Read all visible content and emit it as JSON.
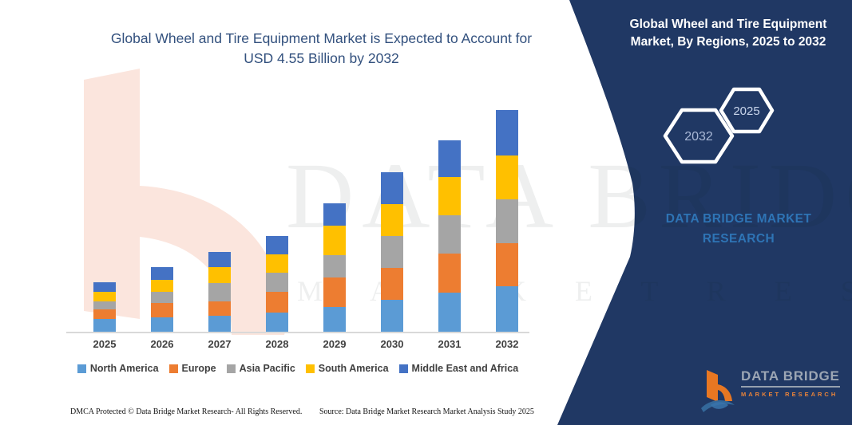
{
  "page": {
    "background": "#FFFFFF"
  },
  "chart": {
    "title": "Global Wheel and Tire Equipment Market is Expected to Account for USD 4.55 Billion by 2032",
    "title_line1": "Global Wheel and Tire Equipment Market is Expected to Account for",
    "title_line2": "USD 4.55 Billion by 2032",
    "title_color": "#33517E",
    "axis_color": "#D9D9D9"
  },
  "chart_data": {
    "type": "bar",
    "stacked": true,
    "title": "Global Wheel and Tire Equipment Market is Expected to Account for USD 4.55 Billion by 2032",
    "unit": "USD Billion",
    "categories": [
      "2025",
      "2026",
      "2027",
      "2028",
      "2029",
      "2030",
      "2031",
      "2032"
    ],
    "series": [
      {
        "name": "North America",
        "color": "#5B9BD5",
        "values": [
          0.27,
          0.3,
          0.33,
          0.4,
          0.51,
          0.66,
          0.8,
          0.93
        ]
      },
      {
        "name": "Europe",
        "color": "#ED7D31",
        "values": [
          0.19,
          0.29,
          0.3,
          0.42,
          0.6,
          0.66,
          0.8,
          0.88
        ]
      },
      {
        "name": "Asia Pacific",
        "color": "#A5A5A5",
        "values": [
          0.16,
          0.23,
          0.38,
          0.4,
          0.46,
          0.65,
          0.78,
          0.9
        ]
      },
      {
        "name": "South America",
        "color": "#FFC000",
        "values": [
          0.2,
          0.25,
          0.33,
          0.38,
          0.6,
          0.65,
          0.78,
          0.9
        ]
      },
      {
        "name": "Middle East and Africa",
        "color": "#4472C4",
        "values": [
          0.19,
          0.27,
          0.31,
          0.38,
          0.46,
          0.65,
          0.76,
          0.94
        ]
      }
    ],
    "totals_estimated": [
      1.01,
      1.34,
      1.65,
      1.98,
      2.63,
      3.27,
      3.92,
      4.55
    ],
    "ylim": [
      0,
      4.8
    ],
    "y_axis_visible": false,
    "grid": false,
    "legend_position": "bottom"
  },
  "sidebar": {
    "heading": "Global Wheel and Tire Equipment Market, By Regions, 2025 to 2032",
    "panel_color": "#203864",
    "hexagons": [
      {
        "label": "2032",
        "label_color": "#A9B8D6"
      },
      {
        "label": "2025",
        "label_color": "#C9D5EB"
      }
    ],
    "brand_line1": "DATA BRIDGE MARKET",
    "brand_line2": "RESEARCH",
    "brand_color": "#2E74B5",
    "logo": {
      "name": "DATA BRIDGE",
      "sub": "MARKET RESEARCH",
      "mark_color": "#E87722",
      "swoosh_color": "#34689A"
    }
  },
  "watermark": {
    "line1": "DATA BRIDGE",
    "line2": "M A R K E T   R E S E A R C H",
    "b_color": "#FBE5DD"
  },
  "footer": {
    "left": "DMCA Protected © Data Bridge Market Research-  All Rights Reserved.",
    "right": "Source: Data Bridge Market Research  Market Analysis Study 2025"
  }
}
